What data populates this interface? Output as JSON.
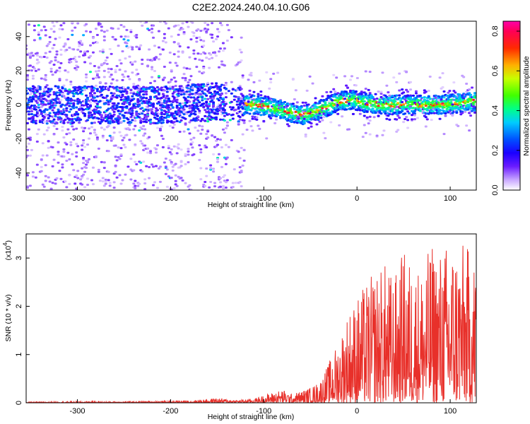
{
  "figure_title": "C2E2.2024.240.04.10.G06",
  "chart_data": [
    {
      "type": "heatmap",
      "title": "C2E2.2024.240.04.10.G06",
      "xlabel": "Height of straight line (km)",
      "ylabel": "Frequency (Hz)",
      "xlim": [
        -355,
        128
      ],
      "ylim": [
        -50,
        49
      ],
      "x_ticks": [
        -300,
        -200,
        -100,
        0,
        100
      ],
      "y_ticks": [
        -40,
        -20,
        0,
        20,
        40
      ],
      "colorbar": {
        "label": "Normalized spectral amplitude",
        "range": [
          0,
          0.85
        ],
        "ticks": [
          0.0,
          0.2,
          0.4,
          0.6,
          0.8
        ],
        "colors": [
          "#ffffff",
          "#9a5cff",
          "#3b00ff",
          "#0000ff",
          "#0066ff",
          "#00e5ff",
          "#00ff66",
          "#66ff00",
          "#ffd000",
          "#ff5500",
          "#ff0000",
          "#ff00aa"
        ]
      },
      "ridge": {
        "x": [
          -355,
          -300,
          -250,
          -200,
          -170,
          -150,
          -130,
          -110,
          -90,
          -75,
          -60,
          -50,
          -35,
          -20,
          -5,
          10,
          30,
          50,
          70,
          90,
          110,
          128
        ],
        "freq_hz": [
          0,
          0,
          0,
          0,
          1,
          2,
          1,
          0,
          -2,
          -4,
          -6,
          -5,
          -2,
          2,
          3,
          1,
          0,
          0,
          0,
          0,
          1,
          2
        ]
      },
      "grid": false,
      "legend": "colorbar right"
    },
    {
      "type": "line",
      "xlabel": "Height of straight line (km)",
      "ylabel": "SNR (10 * v/v)",
      "y_multiplier": "(x10",
      "y_multiplier_exp": "4",
      "xlim": [
        -355,
        128
      ],
      "ylim": [
        0,
        3.5
      ],
      "x_ticks": [
        -300,
        -200,
        -100,
        0,
        100
      ],
      "y_ticks": [
        0,
        1,
        2,
        3
      ],
      "series": [
        {
          "color": "#e8302a",
          "envelope_x": [
            -355,
            -300,
            -250,
            -200,
            -170,
            -150,
            -130,
            -110,
            -100,
            -90,
            -80,
            -70,
            -60,
            -50,
            -40,
            -30,
            -20,
            -10,
            0,
            10,
            20,
            30,
            40,
            50,
            60,
            70,
            80,
            90,
            100,
            110,
            120,
            128
          ],
          "envelope_max": [
            0.02,
            0.03,
            0.03,
            0.04,
            0.06,
            0.1,
            0.06,
            0.09,
            0.16,
            0.22,
            0.28,
            0.18,
            0.25,
            0.32,
            0.45,
            0.85,
            1.3,
            1.9,
            2.2,
            2.5,
            2.75,
            2.9,
            2.6,
            3.2,
            2.9,
            2.85,
            3.3,
            3.2,
            3.4,
            3.35,
            3.25,
            3.1
          ]
        }
      ],
      "grid": false
    }
  ]
}
